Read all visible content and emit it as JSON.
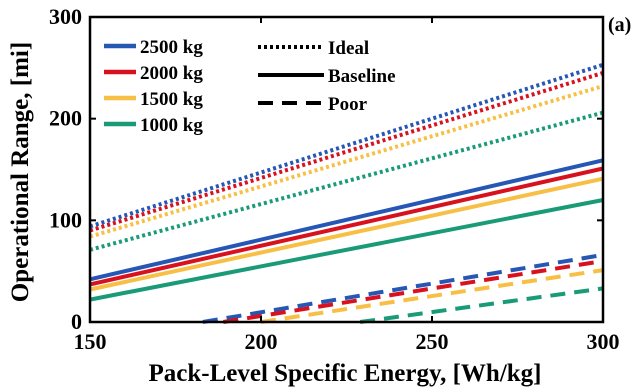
{
  "chart_data": {
    "type": "line",
    "panel_label": "(a)",
    "xlabel": "Pack-Level Specific Energy, [Wh/kg]",
    "ylabel": "Operational Range, [mi]",
    "xlim": [
      150,
      300
    ],
    "ylim": [
      0,
      300
    ],
    "xticks": [
      "150",
      "200",
      "250",
      "300"
    ],
    "yticks": [
      "0",
      "100",
      "200",
      "300"
    ],
    "grid": false,
    "legend_mass": {
      "placement": "top-left",
      "entries": [
        {
          "label": "2500 kg",
          "color": "#2757b5"
        },
        {
          "label": "2000 kg",
          "color": "#d7121e"
        },
        {
          "label": "1500 kg",
          "color": "#f7bf45"
        },
        {
          "label": "1000 kg",
          "color": "#1a9b78"
        }
      ]
    },
    "legend_scenario": {
      "placement": "top-center",
      "entries": [
        {
          "label": "Ideal",
          "style": "dotted"
        },
        {
          "label": "Baseline",
          "style": "solid"
        },
        {
          "label": "Poor",
          "style": "dashed"
        }
      ]
    },
    "series": [
      {
        "mass": "2500 kg",
        "scenario": "Ideal",
        "color": "#2757b5",
        "style": "dotted",
        "x": [
          150,
          300
        ],
        "y": [
          94,
          253
        ]
      },
      {
        "mass": "2000 kg",
        "scenario": "Ideal",
        "color": "#d7121e",
        "style": "dotted",
        "x": [
          150,
          300
        ],
        "y": [
          90,
          245
        ]
      },
      {
        "mass": "1500 kg",
        "scenario": "Ideal",
        "color": "#f7bf45",
        "style": "dotted",
        "x": [
          150,
          300
        ],
        "y": [
          84,
          232
        ]
      },
      {
        "mass": "1000 kg",
        "scenario": "Ideal",
        "color": "#1a9b78",
        "style": "dotted",
        "x": [
          150,
          300
        ],
        "y": [
          71,
          206
        ]
      },
      {
        "mass": "2500 kg",
        "scenario": "Baseline",
        "color": "#2757b5",
        "style": "solid",
        "x": [
          150,
          300
        ],
        "y": [
          42,
          159
        ]
      },
      {
        "mass": "2000 kg",
        "scenario": "Baseline",
        "color": "#d7121e",
        "style": "solid",
        "x": [
          150,
          300
        ],
        "y": [
          37,
          151
        ]
      },
      {
        "mass": "1500 kg",
        "scenario": "Baseline",
        "color": "#f7bf45",
        "style": "solid",
        "x": [
          150,
          300
        ],
        "y": [
          32,
          141
        ]
      },
      {
        "mass": "1000 kg",
        "scenario": "Baseline",
        "color": "#1a9b78",
        "style": "solid",
        "x": [
          150,
          300
        ],
        "y": [
          22,
          120
        ]
      },
      {
        "mass": "2500 kg",
        "scenario": "Poor",
        "color": "#2757b5",
        "style": "dashed",
        "x": [
          183,
          300
        ],
        "y": [
          0,
          66
        ]
      },
      {
        "mass": "2000 kg",
        "scenario": "Poor",
        "color": "#d7121e",
        "style": "dashed",
        "x": [
          189,
          300
        ],
        "y": [
          0,
          60
        ]
      },
      {
        "mass": "1500 kg",
        "scenario": "Poor",
        "color": "#f7bf45",
        "style": "dashed",
        "x": [
          200,
          300
        ],
        "y": [
          0,
          51
        ]
      },
      {
        "mass": "1000 kg",
        "scenario": "Poor",
        "color": "#1a9b78",
        "style": "dashed",
        "x": [
          229,
          300
        ],
        "y": [
          0,
          33
        ]
      }
    ]
  }
}
